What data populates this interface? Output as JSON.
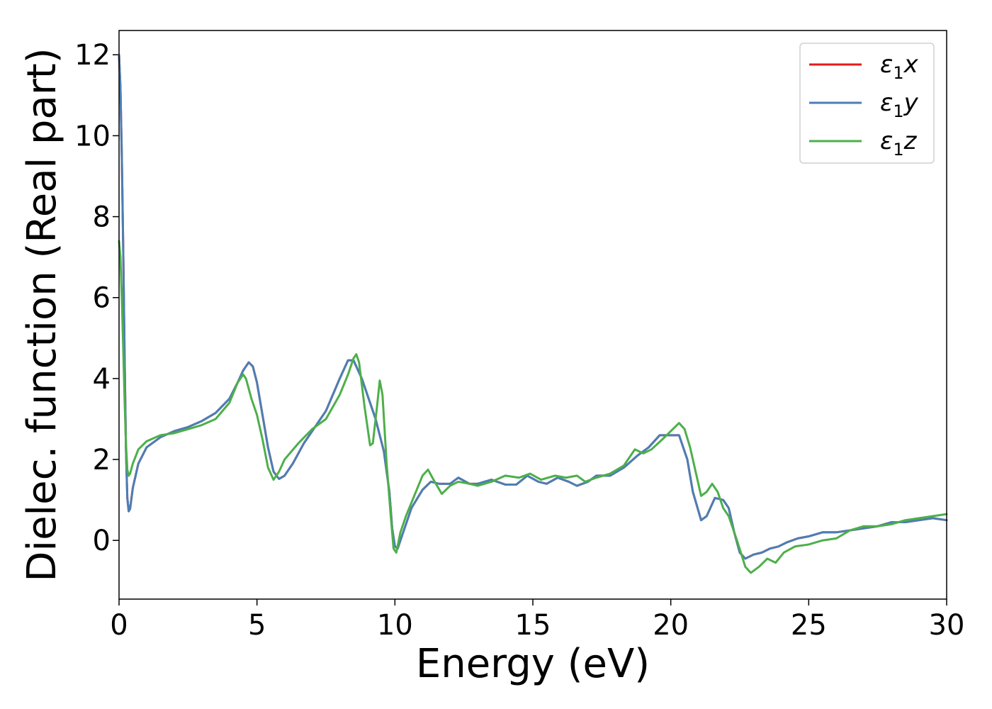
{
  "chart_data": {
    "type": "line",
    "title": "",
    "xlabel": "Energy (eV)",
    "ylabel": "Dielec. function (Real part)",
    "xlim": [
      0,
      30
    ],
    "ylim": [
      -1.45,
      12.6
    ],
    "xticks": [
      0,
      5,
      10,
      15,
      20,
      25,
      30
    ],
    "yticks": [
      0,
      2,
      4,
      6,
      8,
      10,
      12
    ],
    "grid": false,
    "legend_position": "top-right",
    "series": [
      {
        "name": "ε₁x",
        "legend_base": "ε",
        "legend_sub": "1",
        "legend_suffix": "x",
        "color": "#e41a1c",
        "points": [
          [
            0,
            12.0
          ],
          [
            0.05,
            11.2
          ],
          [
            0.1,
            9.5
          ],
          [
            0.15,
            7.3
          ],
          [
            0.2,
            4.6
          ],
          [
            0.25,
            2.3
          ],
          [
            0.3,
            1.05
          ],
          [
            0.35,
            0.72
          ],
          [
            0.4,
            0.78
          ],
          [
            0.5,
            1.3
          ],
          [
            0.7,
            1.9
          ],
          [
            1.0,
            2.3
          ],
          [
            1.5,
            2.55
          ],
          [
            2.0,
            2.7
          ],
          [
            2.5,
            2.8
          ],
          [
            3.0,
            2.95
          ],
          [
            3.5,
            3.15
          ],
          [
            4.0,
            3.5
          ],
          [
            4.3,
            3.9
          ],
          [
            4.5,
            4.2
          ],
          [
            4.7,
            4.4
          ],
          [
            4.85,
            4.3
          ],
          [
            5.0,
            3.9
          ],
          [
            5.2,
            3.1
          ],
          [
            5.4,
            2.3
          ],
          [
            5.6,
            1.7
          ],
          [
            5.8,
            1.52
          ],
          [
            6.0,
            1.6
          ],
          [
            6.3,
            1.9
          ],
          [
            6.7,
            2.4
          ],
          [
            7.0,
            2.7
          ],
          [
            7.5,
            3.2
          ],
          [
            8.0,
            4.0
          ],
          [
            8.3,
            4.45
          ],
          [
            8.5,
            4.45
          ],
          [
            8.8,
            4.0
          ],
          [
            9.0,
            3.6
          ],
          [
            9.3,
            3.0
          ],
          [
            9.6,
            2.2
          ],
          [
            9.8,
            1.2
          ],
          [
            9.9,
            0.3
          ],
          [
            10.0,
            -0.15
          ],
          [
            10.1,
            -0.2
          ],
          [
            10.3,
            0.2
          ],
          [
            10.6,
            0.8
          ],
          [
            11.0,
            1.25
          ],
          [
            11.3,
            1.45
          ],
          [
            11.6,
            1.4
          ],
          [
            12.0,
            1.4
          ],
          [
            12.3,
            1.55
          ],
          [
            12.7,
            1.4
          ],
          [
            13.0,
            1.4
          ],
          [
            13.5,
            1.5
          ],
          [
            14.0,
            1.38
          ],
          [
            14.4,
            1.38
          ],
          [
            14.8,
            1.6
          ],
          [
            15.2,
            1.45
          ],
          [
            15.5,
            1.4
          ],
          [
            15.9,
            1.55
          ],
          [
            16.3,
            1.45
          ],
          [
            16.6,
            1.35
          ],
          [
            17.0,
            1.45
          ],
          [
            17.3,
            1.6
          ],
          [
            17.8,
            1.6
          ],
          [
            18.3,
            1.8
          ],
          [
            18.8,
            2.1
          ],
          [
            19.2,
            2.3
          ],
          [
            19.6,
            2.6
          ],
          [
            20.0,
            2.6
          ],
          [
            20.3,
            2.6
          ],
          [
            20.6,
            2.0
          ],
          [
            20.8,
            1.2
          ],
          [
            21.1,
            0.5
          ],
          [
            21.3,
            0.6
          ],
          [
            21.6,
            1.05
          ],
          [
            21.9,
            1.0
          ],
          [
            22.1,
            0.8
          ],
          [
            22.3,
            0.2
          ],
          [
            22.5,
            -0.3
          ],
          [
            22.7,
            -0.45
          ],
          [
            23.0,
            -0.35
          ],
          [
            23.3,
            -0.3
          ],
          [
            23.6,
            -0.2
          ],
          [
            23.9,
            -0.15
          ],
          [
            24.2,
            -0.05
          ],
          [
            24.6,
            0.05
          ],
          [
            25.0,
            0.1
          ],
          [
            25.5,
            0.2
          ],
          [
            26.0,
            0.2
          ],
          [
            26.5,
            0.25
          ],
          [
            27.0,
            0.3
          ],
          [
            27.5,
            0.35
          ],
          [
            28.0,
            0.45
          ],
          [
            28.5,
            0.45
          ],
          [
            29.0,
            0.5
          ],
          [
            29.5,
            0.55
          ],
          [
            30.0,
            0.5
          ]
        ]
      },
      {
        "name": "ε₁y",
        "legend_base": "ε",
        "legend_sub": "1",
        "legend_suffix": "y",
        "color": "#4a7fb5",
        "points": [
          [
            0,
            12.0
          ],
          [
            0.05,
            11.2
          ],
          [
            0.1,
            9.5
          ],
          [
            0.15,
            7.3
          ],
          [
            0.2,
            4.6
          ],
          [
            0.25,
            2.3
          ],
          [
            0.3,
            1.05
          ],
          [
            0.35,
            0.72
          ],
          [
            0.4,
            0.78
          ],
          [
            0.5,
            1.3
          ],
          [
            0.7,
            1.9
          ],
          [
            1.0,
            2.3
          ],
          [
            1.5,
            2.55
          ],
          [
            2.0,
            2.7
          ],
          [
            2.5,
            2.8
          ],
          [
            3.0,
            2.95
          ],
          [
            3.5,
            3.15
          ],
          [
            4.0,
            3.5
          ],
          [
            4.3,
            3.9
          ],
          [
            4.5,
            4.2
          ],
          [
            4.7,
            4.4
          ],
          [
            4.85,
            4.3
          ],
          [
            5.0,
            3.9
          ],
          [
            5.2,
            3.1
          ],
          [
            5.4,
            2.3
          ],
          [
            5.6,
            1.7
          ],
          [
            5.8,
            1.52
          ],
          [
            6.0,
            1.6
          ],
          [
            6.3,
            1.9
          ],
          [
            6.7,
            2.4
          ],
          [
            7.0,
            2.7
          ],
          [
            7.5,
            3.2
          ],
          [
            8.0,
            4.0
          ],
          [
            8.3,
            4.45
          ],
          [
            8.5,
            4.45
          ],
          [
            8.8,
            4.0
          ],
          [
            9.0,
            3.6
          ],
          [
            9.3,
            3.0
          ],
          [
            9.6,
            2.2
          ],
          [
            9.8,
            1.2
          ],
          [
            9.9,
            0.3
          ],
          [
            10.0,
            -0.15
          ],
          [
            10.1,
            -0.2
          ],
          [
            10.3,
            0.2
          ],
          [
            10.6,
            0.8
          ],
          [
            11.0,
            1.25
          ],
          [
            11.3,
            1.45
          ],
          [
            11.6,
            1.4
          ],
          [
            12.0,
            1.4
          ],
          [
            12.3,
            1.55
          ],
          [
            12.7,
            1.4
          ],
          [
            13.0,
            1.4
          ],
          [
            13.5,
            1.5
          ],
          [
            14.0,
            1.38
          ],
          [
            14.4,
            1.38
          ],
          [
            14.8,
            1.6
          ],
          [
            15.2,
            1.45
          ],
          [
            15.5,
            1.4
          ],
          [
            15.9,
            1.55
          ],
          [
            16.3,
            1.45
          ],
          [
            16.6,
            1.35
          ],
          [
            17.0,
            1.45
          ],
          [
            17.3,
            1.6
          ],
          [
            17.8,
            1.6
          ],
          [
            18.3,
            1.8
          ],
          [
            18.8,
            2.1
          ],
          [
            19.2,
            2.3
          ],
          [
            19.6,
            2.6
          ],
          [
            20.0,
            2.6
          ],
          [
            20.3,
            2.6
          ],
          [
            20.6,
            2.0
          ],
          [
            20.8,
            1.2
          ],
          [
            21.1,
            0.5
          ],
          [
            21.3,
            0.6
          ],
          [
            21.6,
            1.05
          ],
          [
            21.9,
            1.0
          ],
          [
            22.1,
            0.8
          ],
          [
            22.3,
            0.2
          ],
          [
            22.5,
            -0.3
          ],
          [
            22.7,
            -0.45
          ],
          [
            23.0,
            -0.35
          ],
          [
            23.3,
            -0.3
          ],
          [
            23.6,
            -0.2
          ],
          [
            23.9,
            -0.15
          ],
          [
            24.2,
            -0.05
          ],
          [
            24.6,
            0.05
          ],
          [
            25.0,
            0.1
          ],
          [
            25.5,
            0.2
          ],
          [
            26.0,
            0.2
          ],
          [
            26.5,
            0.25
          ],
          [
            27.0,
            0.3
          ],
          [
            27.5,
            0.35
          ],
          [
            28.0,
            0.45
          ],
          [
            28.5,
            0.45
          ],
          [
            29.0,
            0.5
          ],
          [
            29.5,
            0.55
          ],
          [
            30.0,
            0.5
          ]
        ]
      },
      {
        "name": "ε₁z",
        "legend_base": "ε",
        "legend_sub": "1",
        "legend_suffix": "z",
        "color": "#4daf4a",
        "points": [
          [
            0,
            7.4
          ],
          [
            0.05,
            7.0
          ],
          [
            0.1,
            6.0
          ],
          [
            0.15,
            4.8
          ],
          [
            0.2,
            3.5
          ],
          [
            0.25,
            2.4
          ],
          [
            0.3,
            1.75
          ],
          [
            0.35,
            1.6
          ],
          [
            0.4,
            1.65
          ],
          [
            0.5,
            1.9
          ],
          [
            0.7,
            2.25
          ],
          [
            1.0,
            2.45
          ],
          [
            1.5,
            2.6
          ],
          [
            2.0,
            2.65
          ],
          [
            2.5,
            2.75
          ],
          [
            3.0,
            2.85
          ],
          [
            3.5,
            3.0
          ],
          [
            4.0,
            3.4
          ],
          [
            4.3,
            3.9
          ],
          [
            4.5,
            4.1
          ],
          [
            4.6,
            4.0
          ],
          [
            4.8,
            3.5
          ],
          [
            5.0,
            3.1
          ],
          [
            5.2,
            2.5
          ],
          [
            5.4,
            1.8
          ],
          [
            5.6,
            1.5
          ],
          [
            5.8,
            1.7
          ],
          [
            6.0,
            2.0
          ],
          [
            6.5,
            2.4
          ],
          [
            7.0,
            2.75
          ],
          [
            7.5,
            3.0
          ],
          [
            8.0,
            3.6
          ],
          [
            8.3,
            4.1
          ],
          [
            8.5,
            4.5
          ],
          [
            8.6,
            4.6
          ],
          [
            8.7,
            4.4
          ],
          [
            8.9,
            3.3
          ],
          [
            9.1,
            2.35
          ],
          [
            9.2,
            2.4
          ],
          [
            9.35,
            3.3
          ],
          [
            9.45,
            3.95
          ],
          [
            9.55,
            3.6
          ],
          [
            9.7,
            1.9
          ],
          [
            9.85,
            0.6
          ],
          [
            9.95,
            -0.2
          ],
          [
            10.05,
            -0.3
          ],
          [
            10.2,
            0.2
          ],
          [
            10.4,
            0.6
          ],
          [
            10.7,
            1.1
          ],
          [
            11.0,
            1.6
          ],
          [
            11.2,
            1.75
          ],
          [
            11.4,
            1.5
          ],
          [
            11.7,
            1.15
          ],
          [
            12.0,
            1.35
          ],
          [
            12.3,
            1.45
          ],
          [
            12.7,
            1.4
          ],
          [
            13.0,
            1.35
          ],
          [
            13.5,
            1.45
          ],
          [
            14.0,
            1.6
          ],
          [
            14.5,
            1.55
          ],
          [
            14.9,
            1.65
          ],
          [
            15.3,
            1.5
          ],
          [
            15.8,
            1.6
          ],
          [
            16.2,
            1.55
          ],
          [
            16.6,
            1.6
          ],
          [
            16.9,
            1.45
          ],
          [
            17.3,
            1.55
          ],
          [
            17.8,
            1.65
          ],
          [
            18.3,
            1.85
          ],
          [
            18.7,
            2.25
          ],
          [
            19.0,
            2.15
          ],
          [
            19.3,
            2.25
          ],
          [
            19.7,
            2.5
          ],
          [
            20.0,
            2.7
          ],
          [
            20.3,
            2.9
          ],
          [
            20.5,
            2.75
          ],
          [
            20.7,
            2.3
          ],
          [
            20.9,
            1.7
          ],
          [
            21.1,
            1.1
          ],
          [
            21.3,
            1.2
          ],
          [
            21.5,
            1.4
          ],
          [
            21.7,
            1.2
          ],
          [
            21.9,
            0.8
          ],
          [
            22.1,
            0.6
          ],
          [
            22.4,
            0.0
          ],
          [
            22.7,
            -0.65
          ],
          [
            22.9,
            -0.8
          ],
          [
            23.2,
            -0.65
          ],
          [
            23.5,
            -0.45
          ],
          [
            23.8,
            -0.55
          ],
          [
            24.1,
            -0.3
          ],
          [
            24.5,
            -0.15
          ],
          [
            25.0,
            -0.1
          ],
          [
            25.5,
            0.0
          ],
          [
            26.0,
            0.05
          ],
          [
            26.5,
            0.25
          ],
          [
            27.0,
            0.35
          ],
          [
            27.5,
            0.35
          ],
          [
            28.0,
            0.4
          ],
          [
            28.5,
            0.5
          ],
          [
            29.0,
            0.55
          ],
          [
            29.5,
            0.6
          ],
          [
            30.0,
            0.65
          ]
        ]
      }
    ]
  }
}
